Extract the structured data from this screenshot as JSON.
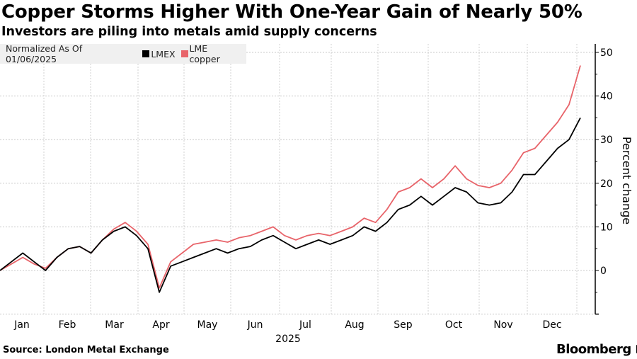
{
  "header": {
    "title": "Copper Storms Higher With One-Year Gain of Nearly 50%",
    "subtitle": "Investors are piling into metals amid supply concerns"
  },
  "legend": {
    "note": "Normalized As Of 01/06/2025",
    "items": [
      {
        "label": "LMEX",
        "color": "#000000"
      },
      {
        "label": "LME copper",
        "color": "#e8646a"
      }
    ]
  },
  "footer": {
    "source": "Source: London Metal Exchange",
    "brand": "Bloomberg",
    "brand_icon": "bloomberg-chart-icon"
  },
  "chart_data": {
    "type": "line",
    "title": "Copper Storms Higher With One-Year Gain of Nearly 50%",
    "subtitle": "Investors are piling into metals amid supply concerns",
    "xlabel": "2025",
    "ylabel": "Percent change",
    "x_ticks": [
      "Jan",
      "Feb",
      "Mar",
      "Apr",
      "May",
      "Jun",
      "Jul",
      "Aug",
      "Sep",
      "Oct",
      "Nov",
      "Dec"
    ],
    "x_year_label": "2025",
    "y_ticks": [
      0,
      10,
      20,
      30,
      40,
      50
    ],
    "ylim": [
      -10,
      52
    ],
    "xlim_weeks": [
      0,
      51
    ],
    "grid": true,
    "y_axis_position": "right",
    "legend_position": "top-left",
    "x_unit": "week of 2025 (0 = Jan 6)",
    "series": [
      {
        "name": "LMEX",
        "color": "#000000",
        "x": [
          0,
          1,
          2,
          3,
          4,
          5,
          6,
          7,
          8,
          9,
          10,
          11,
          12,
          13,
          14,
          15,
          16,
          17,
          18,
          19,
          20,
          21,
          22,
          23,
          24,
          25,
          26,
          27,
          28,
          29,
          30,
          31,
          32,
          33,
          34,
          35,
          36,
          37,
          38,
          39,
          40,
          41,
          42,
          43,
          44,
          45,
          46,
          47,
          48,
          49,
          50,
          51
        ],
        "values": [
          0,
          2,
          4,
          2,
          0,
          3,
          5,
          5.5,
          4,
          7,
          9,
          10,
          8,
          5,
          -5,
          1,
          2,
          3,
          4,
          5,
          4,
          5,
          5.5,
          7,
          8,
          6.5,
          5,
          6,
          7,
          6,
          7,
          8,
          10,
          9,
          11,
          14,
          15,
          17,
          15,
          17,
          19,
          18,
          15.5,
          15,
          15.5,
          18,
          22,
          22,
          25,
          28,
          30,
          35
        ]
      },
      {
        "name": "LME copper",
        "color": "#e8646a",
        "x": [
          0,
          1,
          2,
          3,
          4,
          5,
          6,
          7,
          8,
          9,
          10,
          11,
          12,
          13,
          14,
          15,
          16,
          17,
          18,
          19,
          20,
          21,
          22,
          23,
          24,
          25,
          26,
          27,
          28,
          29,
          30,
          31,
          32,
          33,
          34,
          35,
          36,
          37,
          38,
          39,
          40,
          41,
          42,
          43,
          44,
          45,
          46,
          47,
          48,
          49,
          50,
          51
        ],
        "values": [
          0,
          1.5,
          3,
          1.5,
          0.5,
          3,
          5,
          5.5,
          4,
          7,
          9.5,
          11,
          9,
          6,
          -4,
          2,
          4,
          6,
          6.5,
          7,
          6.5,
          7.5,
          8,
          9,
          10,
          8,
          7,
          8,
          8.5,
          8,
          9,
          10,
          12,
          11,
          14,
          18,
          19,
          21,
          19,
          21,
          24,
          21,
          19.5,
          19,
          20,
          23,
          27,
          28,
          31,
          34,
          38,
          47
        ]
      }
    ]
  }
}
